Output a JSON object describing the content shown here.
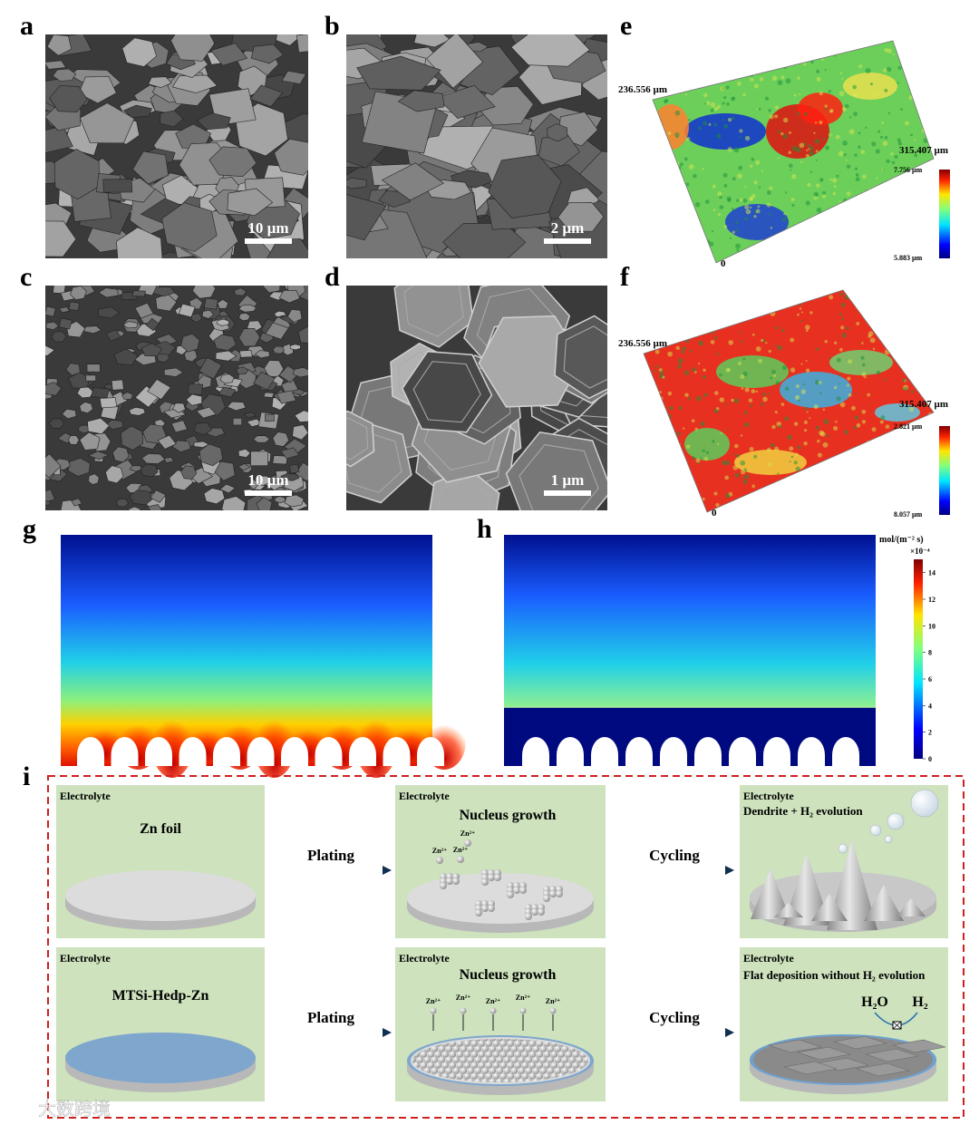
{
  "panels": {
    "a": {
      "label": "a",
      "scale_bar": "10 µm"
    },
    "b": {
      "label": "b",
      "scale_bar": "2 µm"
    },
    "c": {
      "label": "c",
      "scale_bar": "10 µm"
    },
    "d": {
      "label": "d",
      "scale_bar": "1 µm"
    },
    "e": {
      "label": "e",
      "y_extent": "236.556 µm",
      "x_extent": "315.407 µm",
      "height_top": "7.756 µm",
      "height_bottom": "5.883 µm",
      "origin": "0"
    },
    "f": {
      "label": "f",
      "y_extent": "236.556 µm",
      "x_extent": "315.407 µm",
      "height_top": "2.821 µm",
      "height_bottom": "8.057 µm",
      "origin": "0"
    },
    "g": {
      "label": "g"
    },
    "h": {
      "label": "h",
      "colorbar": {
        "unit": "mol/(m⁻² s)",
        "multiplier": "×10⁻⁴",
        "lim": [
          0,
          15
        ],
        "ticks": [
          0,
          2,
          4,
          6,
          8,
          10,
          12,
          14
        ]
      }
    },
    "i": {
      "label": "i"
    }
  },
  "scheme": {
    "rows": [
      {
        "steps": [
          "Plating",
          "Cycling"
        ],
        "cells": [
          {
            "medium": "Electrolyte",
            "title": "Zn foil"
          },
          {
            "medium": "Electrolyte",
            "title": "Nucleus growth",
            "ions": [
              "Zn²⁺",
              "Zn²⁺",
              "Zn²⁺"
            ]
          },
          {
            "medium": "Electrolyte",
            "title": "Dendrite + H₂ evolution"
          }
        ]
      },
      {
        "steps": [
          "Plating",
          "Cycling"
        ],
        "cells": [
          {
            "medium": "Electrolyte",
            "title": "MTSi-Hedp-Zn"
          },
          {
            "medium": "Electrolyte",
            "title": "Nucleus growth",
            "ions": [
              "Zn²⁺",
              "Zn²⁺",
              "Zn²⁺",
              "Zn²⁺",
              "Zn²⁺"
            ]
          },
          {
            "medium": "Electrolyte",
            "title": "Flat deposition without H₂ evolution",
            "reaction": [
              "H₂O",
              "H₂"
            ]
          }
        ]
      }
    ]
  },
  "watermark": "大数跨境"
}
